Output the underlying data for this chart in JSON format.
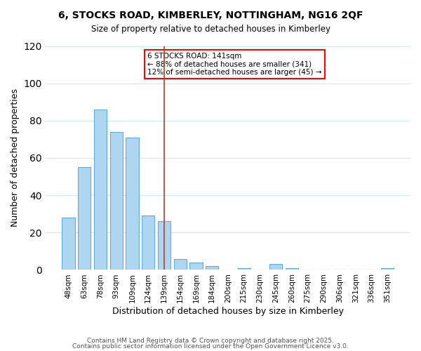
{
  "title": "6, STOCKS ROAD, KIMBERLEY, NOTTINGHAM, NG16 2QF",
  "subtitle": "Size of property relative to detached houses in Kimberley",
  "xlabel": "Distribution of detached houses by size in Kimberley",
  "ylabel": "Number of detached properties",
  "bar_color": "#aed6f1",
  "bar_edge_color": "#5dade2",
  "background_color": "#ffffff",
  "grid_color": "#d0e8f0",
  "categories": [
    "48sqm",
    "63sqm",
    "78sqm",
    "93sqm",
    "109sqm",
    "124sqm",
    "139sqm",
    "154sqm",
    "169sqm",
    "184sqm",
    "200sqm",
    "215sqm",
    "230sqm",
    "245sqm",
    "260sqm",
    "275sqm",
    "290sqm",
    "306sqm",
    "321sqm",
    "336sqm",
    "351sqm"
  ],
  "values": [
    28,
    55,
    86,
    74,
    71,
    29,
    26,
    6,
    4,
    2,
    0,
    1,
    0,
    3,
    1,
    0,
    0,
    0,
    0,
    0,
    1
  ],
  "highlight_bar_index": 6,
  "ylim": [
    0,
    120
  ],
  "yticks": [
    0,
    20,
    40,
    60,
    80,
    100,
    120
  ],
  "annotation_title": "6 STOCKS ROAD: 141sqm",
  "annotation_line1": "← 88% of detached houses are smaller (341)",
  "annotation_line2": "12% of semi-detached houses are larger (45) →",
  "vline_x_index": 6,
  "footer_line1": "Contains HM Land Registry data © Crown copyright and database right 2025.",
  "footer_line2": "Contains public sector information licensed under the Open Government Licence v3.0."
}
